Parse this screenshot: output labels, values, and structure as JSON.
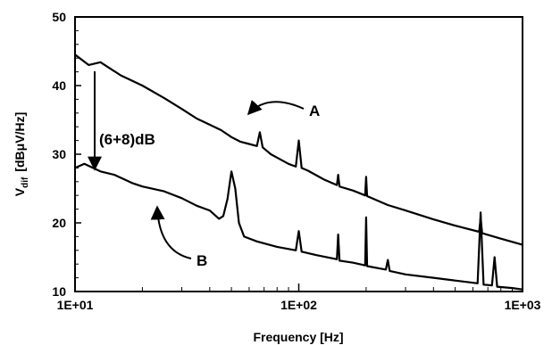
{
  "chart_data": {
    "type": "line",
    "title": "",
    "xlabel": "Frequency [Hz]",
    "ylabel": {
      "main": "V",
      "sub": "dif",
      "unit": "[dBμV/Hz]"
    },
    "xscale": "log",
    "xlim": [
      10,
      1000
    ],
    "ylim": [
      10,
      50
    ],
    "grid": false,
    "xticks": [
      {
        "value": 10,
        "label": "1E+01"
      },
      {
        "value": 100,
        "label": "1E+02"
      },
      {
        "value": 1000,
        "label": "1E+03"
      }
    ],
    "yticks": [
      10,
      20,
      30,
      40,
      50
    ],
    "series": [
      {
        "name": "A",
        "points": [
          [
            10,
            44.5
          ],
          [
            11.5,
            43
          ],
          [
            13,
            43.4
          ],
          [
            16,
            41.5
          ],
          [
            20,
            40
          ],
          [
            25,
            38.2
          ],
          [
            30,
            36.6
          ],
          [
            35,
            35.2
          ],
          [
            40,
            34.3
          ],
          [
            45,
            33.5
          ],
          [
            50,
            32.5
          ],
          [
            55,
            31.8
          ],
          [
            60,
            31.5
          ],
          [
            65,
            31.2
          ],
          [
            67,
            33.2
          ],
          [
            69,
            31
          ],
          [
            75,
            30
          ],
          [
            80,
            29.5
          ],
          [
            90,
            28.6
          ],
          [
            97,
            28.2
          ],
          [
            100,
            32
          ],
          [
            103,
            28
          ],
          [
            110,
            27.6
          ],
          [
            130,
            26.3
          ],
          [
            148,
            25.5
          ],
          [
            150,
            27
          ],
          [
            152,
            25.3
          ],
          [
            175,
            24.7
          ],
          [
            198,
            24
          ],
          [
            200,
            26.7
          ],
          [
            202,
            23.9
          ],
          [
            250,
            22.6
          ],
          [
            300,
            21.8
          ],
          [
            400,
            20.5
          ],
          [
            500,
            19.6
          ],
          [
            640,
            18.7
          ],
          [
            650,
            20.6
          ],
          [
            660,
            18.5
          ],
          [
            800,
            17.7
          ],
          [
            1000,
            16.8
          ]
        ]
      },
      {
        "name": "B",
        "points": [
          [
            10,
            28
          ],
          [
            11,
            28.6
          ],
          [
            13,
            27.5
          ],
          [
            15,
            27
          ],
          [
            18,
            25.8
          ],
          [
            20,
            25.3
          ],
          [
            25,
            24.6
          ],
          [
            30,
            23.6
          ],
          [
            35,
            22.5
          ],
          [
            40,
            21.8
          ],
          [
            44,
            20.6
          ],
          [
            46,
            21
          ],
          [
            48,
            23.5
          ],
          [
            50,
            27.5
          ],
          [
            52,
            25
          ],
          [
            54,
            20
          ],
          [
            57,
            18
          ],
          [
            65,
            17.3
          ],
          [
            80,
            16.5
          ],
          [
            97,
            16
          ],
          [
            100,
            18.8
          ],
          [
            103,
            15.8
          ],
          [
            120,
            15.3
          ],
          [
            148,
            14.7
          ],
          [
            150,
            18.3
          ],
          [
            152,
            14.5
          ],
          [
            175,
            14.2
          ],
          [
            198,
            13.8
          ],
          [
            200,
            20.8
          ],
          [
            202,
            13.7
          ],
          [
            245,
            13.2
          ],
          [
            250,
            14.6
          ],
          [
            255,
            13
          ],
          [
            300,
            12.5
          ],
          [
            400,
            12
          ],
          [
            500,
            11.6
          ],
          [
            630,
            11.2
          ],
          [
            650,
            21.5
          ],
          [
            670,
            11
          ],
          [
            730,
            10.9
          ],
          [
            750,
            15
          ],
          [
            770,
            10.7
          ],
          [
            900,
            10.5
          ],
          [
            1000,
            10.3
          ]
        ]
      }
    ],
    "annotations": [
      {
        "text": "(6+8)dB"
      },
      {
        "text": "A"
      },
      {
        "text": "B"
      }
    ]
  }
}
